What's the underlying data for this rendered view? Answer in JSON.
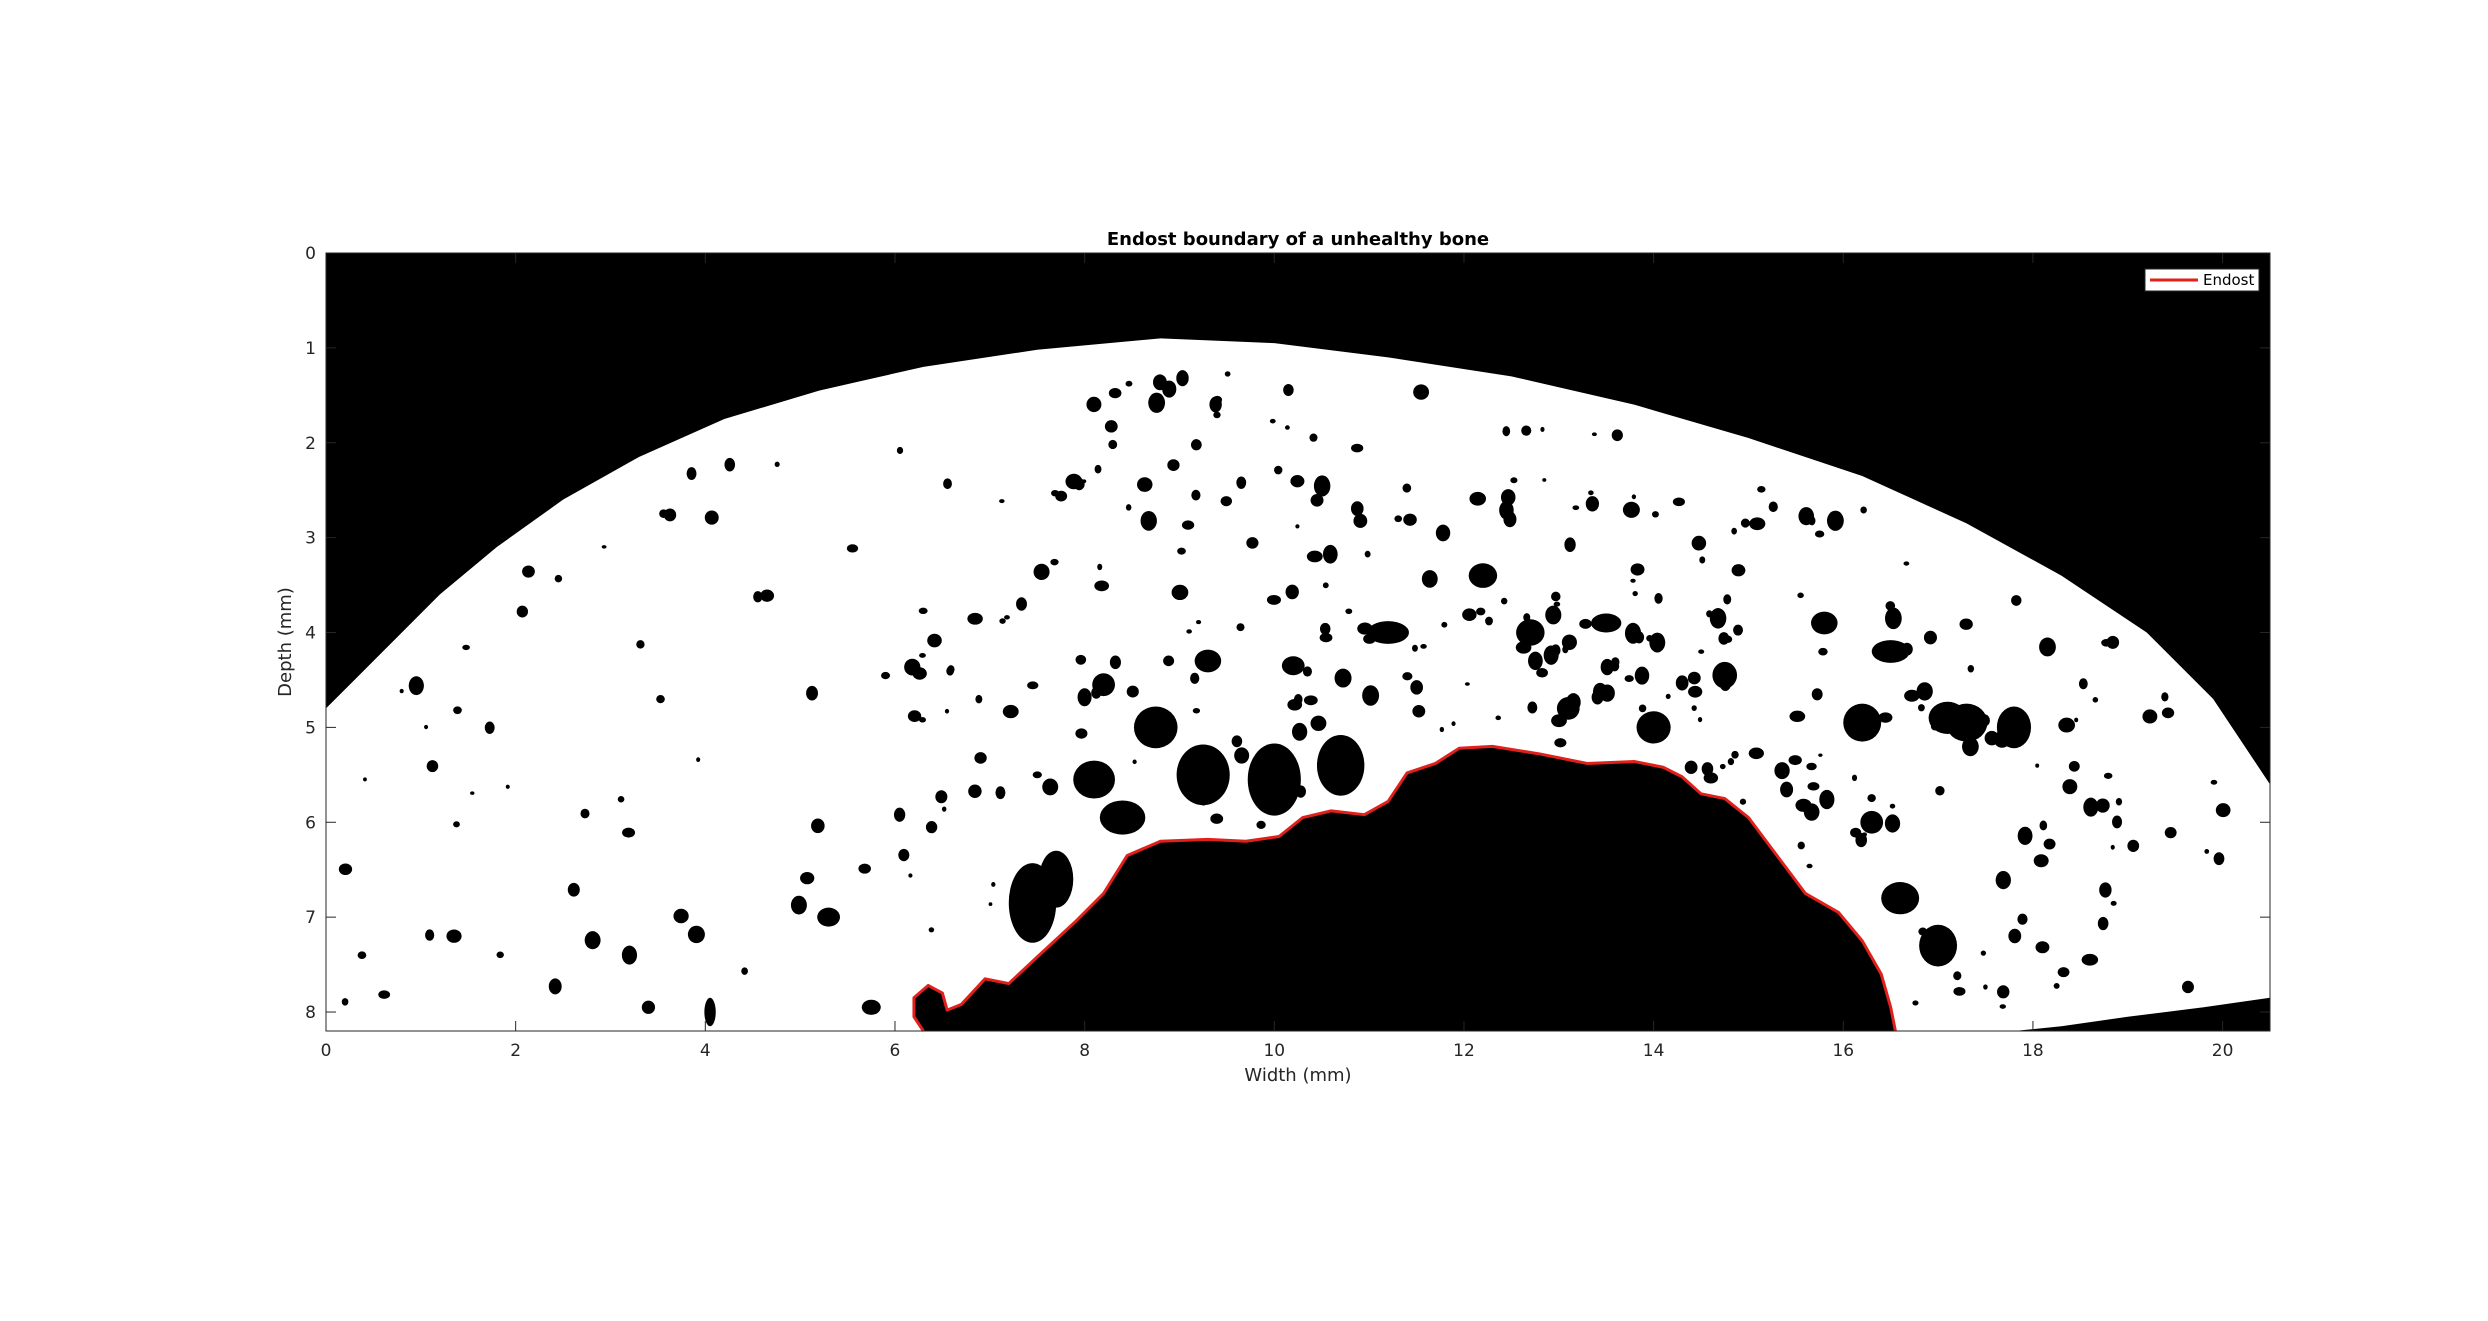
{
  "chart_data": {
    "type": "image",
    "title": "Endost boundary of a unhealthy bone",
    "xlabel": "Width (mm)",
    "ylabel": "Depth (mm)",
    "xlim": [
      0,
      20.5
    ],
    "ylim": [
      0,
      8.2
    ],
    "y_reversed": true,
    "xticks": [
      0,
      2,
      4,
      6,
      8,
      10,
      12,
      14,
      16,
      18,
      20
    ],
    "yticks": [
      0,
      1,
      2,
      3,
      4,
      5,
      6,
      7,
      8
    ],
    "legend": {
      "placement": "top-right",
      "entries": [
        {
          "name": "Endost",
          "color": "#e0201b"
        }
      ]
    },
    "colors": {
      "background": "#000000",
      "bone": "#ffffff",
      "boundary": "#e0201b"
    },
    "outer_bone_surface": [
      [
        0,
        4.8
      ],
      [
        0.3,
        4.5
      ],
      [
        0.7,
        4.1
      ],
      [
        1.2,
        3.6
      ],
      [
        1.8,
        3.1
      ],
      [
        2.5,
        2.6
      ],
      [
        3.3,
        2.15
      ],
      [
        4.2,
        1.75
      ],
      [
        5.2,
        1.45
      ],
      [
        6.3,
        1.2
      ],
      [
        7.5,
        1.02
      ],
      [
        8.8,
        0.9
      ],
      [
        10.0,
        0.95
      ],
      [
        11.2,
        1.1
      ],
      [
        12.5,
        1.3
      ],
      [
        13.8,
        1.6
      ],
      [
        15.0,
        1.95
      ],
      [
        16.2,
        2.35
      ],
      [
        17.3,
        2.85
      ],
      [
        18.3,
        3.4
      ],
      [
        19.2,
        4.0
      ],
      [
        19.9,
        4.7
      ],
      [
        20.5,
        5.6
      ]
    ],
    "bottom_bone_edge": [
      [
        20.5,
        7.85
      ],
      [
        19.8,
        7.95
      ],
      [
        19.0,
        8.05
      ],
      [
        18.3,
        8.15
      ],
      [
        17.8,
        8.2
      ]
    ],
    "endost_boundary": [
      [
        6.3,
        8.2
      ],
      [
        6.2,
        8.05
      ],
      [
        6.2,
        7.85
      ],
      [
        6.35,
        7.72
      ],
      [
        6.5,
        7.8
      ],
      [
        6.55,
        7.98
      ],
      [
        6.7,
        7.92
      ],
      [
        6.95,
        7.65
      ],
      [
        7.2,
        7.7
      ],
      [
        7.5,
        7.42
      ],
      [
        7.9,
        7.05
      ],
      [
        8.2,
        6.75
      ],
      [
        8.45,
        6.35
      ],
      [
        8.8,
        6.2
      ],
      [
        9.3,
        6.18
      ],
      [
        9.7,
        6.2
      ],
      [
        10.05,
        6.15
      ],
      [
        10.3,
        5.95
      ],
      [
        10.6,
        5.88
      ],
      [
        10.95,
        5.92
      ],
      [
        11.2,
        5.78
      ],
      [
        11.4,
        5.48
      ],
      [
        11.7,
        5.38
      ],
      [
        11.95,
        5.22
      ],
      [
        12.3,
        5.2
      ],
      [
        12.8,
        5.28
      ],
      [
        13.3,
        5.38
      ],
      [
        13.8,
        5.36
      ],
      [
        14.1,
        5.42
      ],
      [
        14.3,
        5.52
      ],
      [
        14.5,
        5.7
      ],
      [
        14.75,
        5.75
      ],
      [
        15.0,
        5.95
      ],
      [
        15.3,
        6.35
      ],
      [
        15.6,
        6.75
      ],
      [
        15.95,
        6.95
      ],
      [
        16.2,
        7.25
      ],
      [
        16.4,
        7.6
      ],
      [
        16.5,
        7.95
      ],
      [
        16.55,
        8.2
      ]
    ],
    "pores": [
      [
        8.75,
        5.0,
        0.23,
        0.22
      ],
      [
        9.25,
        5.5,
        0.28,
        0.32
      ],
      [
        10.0,
        5.55,
        0.28,
        0.38
      ],
      [
        10.7,
        5.4,
        0.25,
        0.32
      ],
      [
        8.1,
        5.55,
        0.22,
        0.2
      ],
      [
        8.4,
        5.95,
        0.24,
        0.18
      ],
      [
        7.45,
        6.85,
        0.25,
        0.42
      ],
      [
        7.7,
        6.6,
        0.18,
        0.3
      ],
      [
        12.7,
        4.0,
        0.15,
        0.14
      ],
      [
        14.0,
        5.0,
        0.18,
        0.17
      ],
      [
        14.75,
        4.45,
        0.13,
        0.14
      ],
      [
        16.2,
        4.95,
        0.2,
        0.2
      ],
      [
        17.1,
        4.9,
        0.2,
        0.17
      ],
      [
        17.3,
        4.95,
        0.22,
        0.2
      ],
      [
        16.6,
        6.8,
        0.2,
        0.17
      ],
      [
        17.0,
        7.3,
        0.2,
        0.22
      ],
      [
        16.3,
        6.0,
        0.12,
        0.12
      ],
      [
        17.8,
        5.0,
        0.18,
        0.22
      ],
      [
        13.1,
        4.8,
        0.12,
        0.12
      ],
      [
        11.2,
        4.0,
        0.22,
        0.12
      ],
      [
        12.2,
        3.4,
        0.15,
        0.13
      ],
      [
        13.5,
        3.9,
        0.16,
        0.1
      ],
      [
        9.3,
        4.3,
        0.14,
        0.12
      ],
      [
        10.2,
        4.35,
        0.12,
        0.1
      ],
      [
        15.8,
        3.9,
        0.14,
        0.12
      ],
      [
        16.5,
        4.2,
        0.2,
        0.12
      ],
      [
        8.2,
        4.55,
        0.12,
        0.12
      ],
      [
        3.2,
        7.4,
        0.08,
        0.1
      ],
      [
        1.35,
        7.2,
        0.08,
        0.07
      ],
      [
        5.3,
        7.0,
        0.12,
        0.1
      ],
      [
        5.75,
        7.95,
        0.1,
        0.08
      ],
      [
        4.05,
        8.0,
        0.06,
        0.15
      ],
      [
        3.4,
        7.95,
        0.07,
        0.07
      ],
      [
        12.0,
        6.8,
        0.0,
        0.0
      ]
    ]
  }
}
